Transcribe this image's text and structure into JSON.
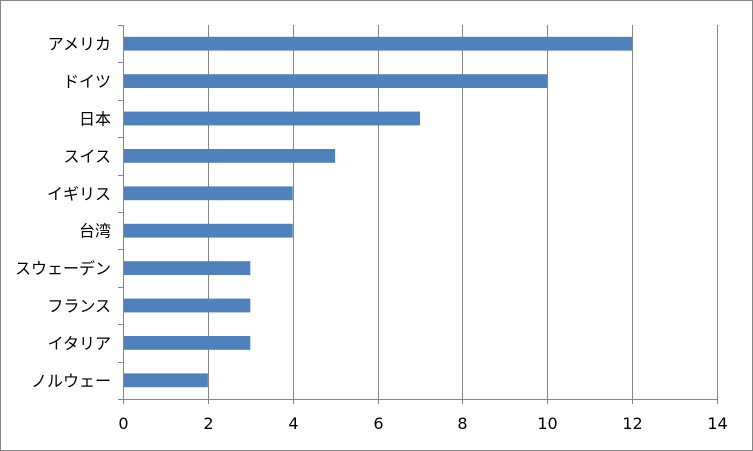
{
  "chart_data": {
    "type": "bar",
    "orientation": "horizontal",
    "categories": [
      "アメリカ",
      "ドイツ",
      "日本",
      "スイス",
      "イギリス",
      "台湾",
      "スウェーデン",
      "フランス",
      "イタリア",
      "ノルウェー"
    ],
    "values": [
      12,
      10,
      7,
      5,
      4,
      4,
      3,
      3,
      3,
      2
    ],
    "xlim": [
      0,
      14
    ],
    "x_ticks": [
      0,
      2,
      4,
      6,
      8,
      10,
      12,
      14
    ],
    "grid": "vertical",
    "legend": "none",
    "bar_color": "#4F81BD",
    "grid_color": "#868686"
  }
}
